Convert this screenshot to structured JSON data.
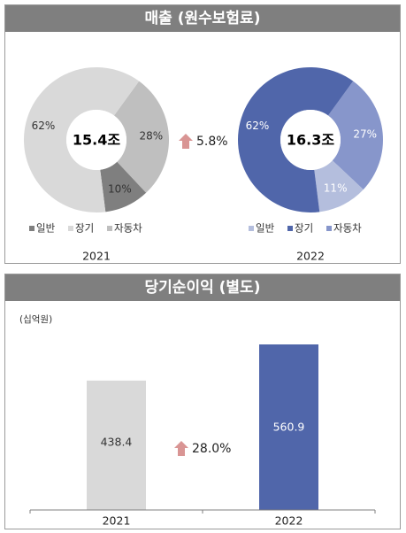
{
  "sales_panel": {
    "title": "매출 (원수보험료)"
  },
  "profit_panel": {
    "title": "당기순이익 (별도)",
    "unit": "(십억원)"
  },
  "colors": {
    "gray_general": "#7f7f7f",
    "gray_long": "#d9d9d9",
    "gray_auto": "#bfbfbf",
    "blue_general": "#b4bedd",
    "blue_long": "#5066aa",
    "blue_auto": "#8796cb",
    "arrow": "#d99594"
  },
  "chart_data": [
    {
      "type": "pie",
      "year": "2021",
      "total_label": "15.4조",
      "slices": [
        {
          "name": "장기",
          "value": 62,
          "label": "62%"
        },
        {
          "name": "자동차",
          "value": 28,
          "label": "28%"
        },
        {
          "name": "일반",
          "value": 10,
          "label": "10%"
        }
      ],
      "legend": [
        "일반",
        "장기",
        "자동차"
      ]
    },
    {
      "type": "pie",
      "year": "2022",
      "total_label": "16.3조",
      "slices": [
        {
          "name": "장기",
          "value": 62,
          "label": "62%"
        },
        {
          "name": "자동차",
          "value": 27,
          "label": "27%"
        },
        {
          "name": "일반",
          "value": 11,
          "label": "11%"
        }
      ],
      "legend": [
        "일반",
        "장기",
        "자동차"
      ]
    },
    {
      "type": "bar",
      "categories": [
        "2021",
        "2022"
      ],
      "values": [
        438.4,
        560.9
      ],
      "value_labels": [
        "438.4",
        "560.9"
      ],
      "ylabel": "(십억원)"
    }
  ],
  "growth": {
    "sales": "5.8%",
    "profit": "28.0%"
  }
}
